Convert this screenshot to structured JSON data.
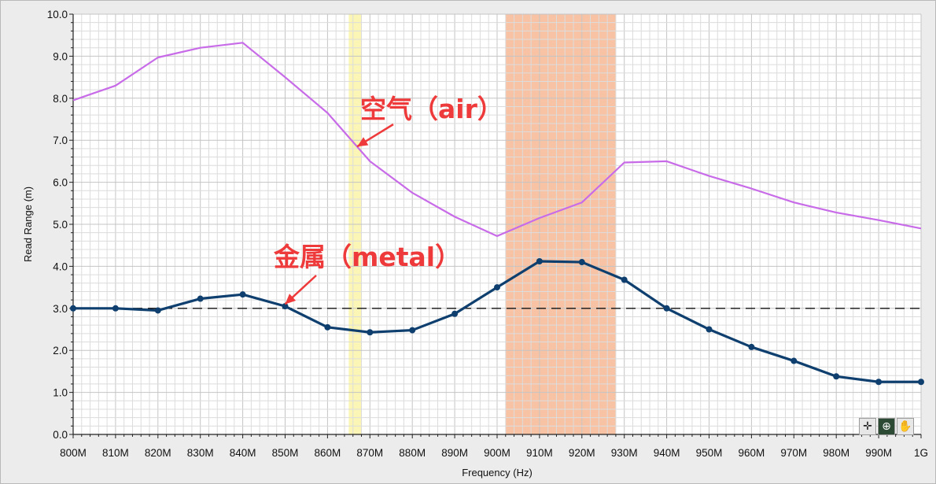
{
  "chart_data": {
    "type": "line",
    "xlabel": "Frequency (Hz)",
    "ylabel": "Read Range (m)",
    "x_tick_labels": [
      "800M",
      "810M",
      "820M",
      "830M",
      "840M",
      "850M",
      "860M",
      "870M",
      "880M",
      "890M",
      "900M",
      "910M",
      "920M",
      "930M",
      "940M",
      "950M",
      "960M",
      "970M",
      "980M",
      "990M",
      "1G"
    ],
    "y_tick_labels": [
      "0.0",
      "1.0",
      "2.0",
      "3.0",
      "4.0",
      "5.0",
      "6.0",
      "7.0",
      "8.0",
      "9.0",
      "10.0"
    ],
    "xlim": [
      800,
      1000
    ],
    "ylim": [
      0,
      10
    ],
    "grid": true,
    "reference_line": {
      "y": 3.0,
      "style": "dashed"
    },
    "highlight_bands": [
      {
        "x_from": 865,
        "x_to": 868,
        "color": "#fbf6b5"
      },
      {
        "x_from": 902,
        "x_to": 928,
        "color": "#f8c3a4"
      }
    ],
    "series": [
      {
        "name": "空气（air）",
        "color": "#c86be8",
        "markers": false,
        "x": [
          800,
          810,
          820,
          830,
          840,
          850,
          860,
          870,
          880,
          890,
          900,
          910,
          920,
          930,
          940,
          950,
          960,
          970,
          980,
          990,
          1000
        ],
        "y": [
          7.95,
          8.3,
          8.97,
          9.2,
          9.32,
          8.5,
          7.65,
          6.5,
          5.75,
          5.18,
          4.72,
          5.15,
          5.52,
          6.47,
          6.5,
          6.15,
          5.85,
          5.52,
          5.28,
          5.1,
          4.9
        ]
      },
      {
        "name": "金属（metal）",
        "color": "#0e3f6e",
        "markers": true,
        "x": [
          800,
          810,
          820,
          830,
          840,
          850,
          860,
          870,
          880,
          890,
          900,
          910,
          920,
          930,
          940,
          950,
          960,
          970,
          980,
          990,
          1000
        ],
        "y": [
          3.0,
          3.0,
          2.95,
          3.23,
          3.33,
          3.05,
          2.55,
          2.43,
          2.48,
          2.87,
          3.5,
          4.12,
          4.1,
          3.68,
          3.0,
          2.5,
          2.08,
          1.75,
          1.38,
          1.25,
          1.25
        ]
      }
    ],
    "annotations": [
      {
        "text": "空气（air）",
        "points_to": {
          "x": 867,
          "y": 6.85
        }
      },
      {
        "text": "金属（metal）",
        "points_to": {
          "x": 850,
          "y": 3.1
        }
      }
    ]
  },
  "toolbar": {
    "tools": [
      {
        "name": "cursor-move-tool",
        "glyph": "✛"
      },
      {
        "name": "zoom-tool",
        "glyph": "⊕"
      },
      {
        "name": "pan-hand-tool",
        "glyph": "✋"
      }
    ]
  }
}
